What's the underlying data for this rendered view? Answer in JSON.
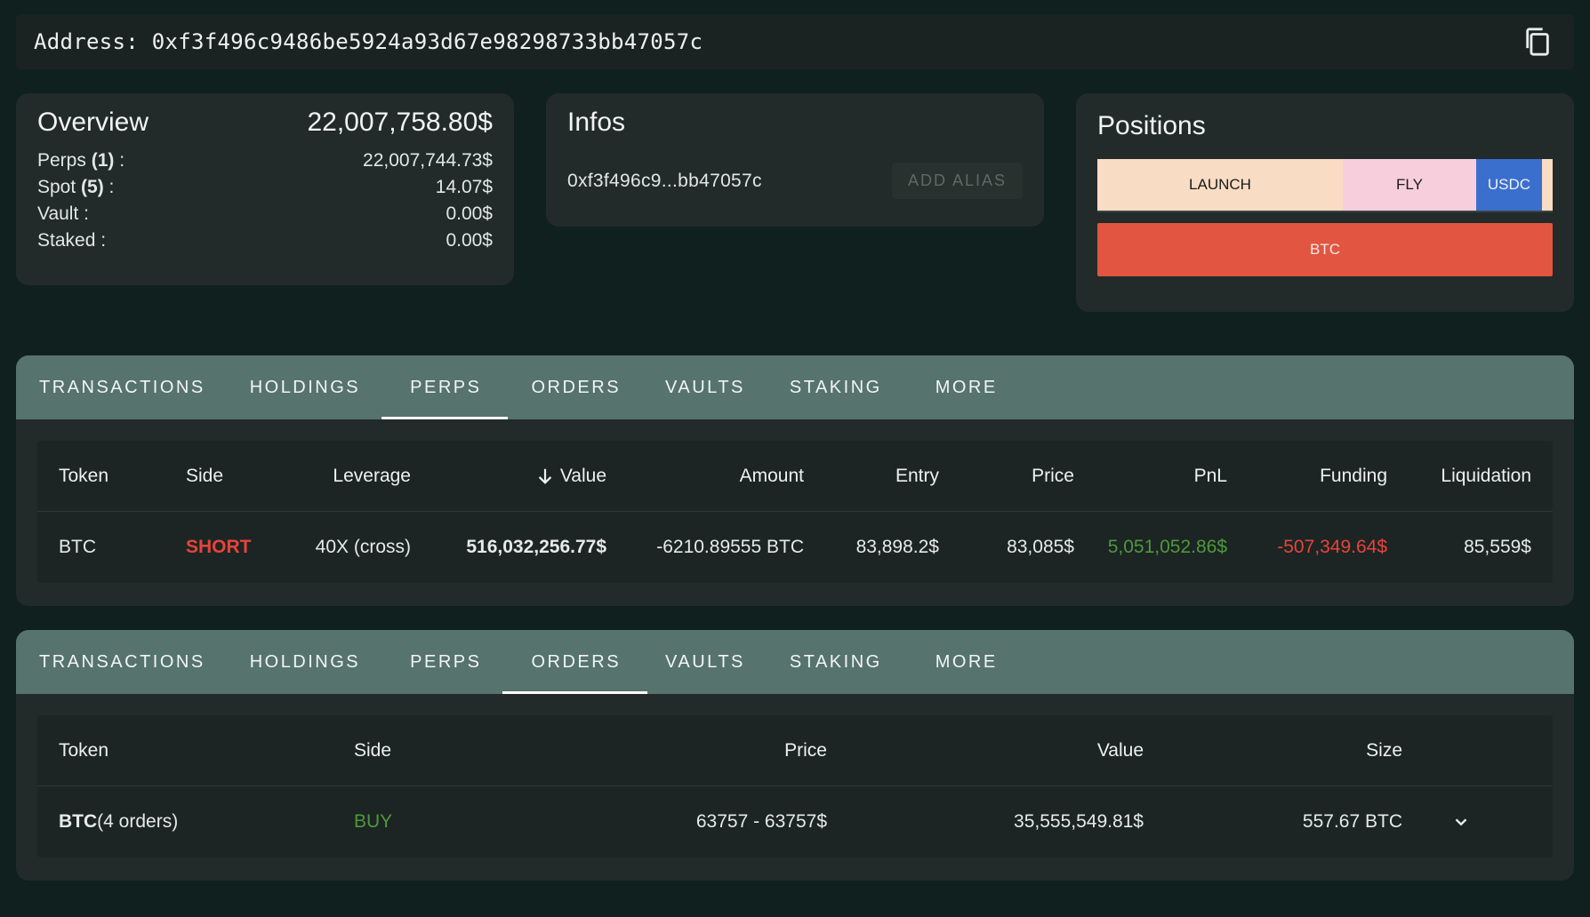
{
  "address_bar": {
    "label": "Address:",
    "value": "0xf3f496c9486be5924a93d67e98298733bb47057c"
  },
  "overview": {
    "title": "Overview",
    "total": "22,007,758.80$",
    "rows": [
      {
        "label": "Perps",
        "count": "(1)",
        "suffix": " :",
        "value": "22,007,744.73$"
      },
      {
        "label": "Spot",
        "count": "(5)",
        "suffix": " :",
        "value": "14.07$"
      },
      {
        "label": "Vault :",
        "value": "0.00$"
      },
      {
        "label": "Staked :",
        "value": "0.00$"
      }
    ]
  },
  "infos": {
    "title": "Infos",
    "short_address": "0xf3f496c9...bb47057c",
    "add_alias_label": "ADD ALIAS"
  },
  "positions": {
    "title": "Positions",
    "bar": [
      {
        "label": "LAUNCH",
        "color": "#f9dcc4"
      },
      {
        "label": "FLY",
        "color": "#f7cfdc"
      },
      {
        "label": "USDC",
        "color": "#3b6fce"
      }
    ],
    "short": {
      "label": "BTC",
      "color": "#e15541"
    }
  },
  "tabs": [
    "TRANSACTIONS",
    "HOLDINGS",
    "PERPS",
    "ORDERS",
    "VAULTS",
    "STAKING",
    "MORE"
  ],
  "perps_panel": {
    "active_tab": "PERPS",
    "columns": {
      "token": "Token",
      "side": "Side",
      "leverage": "Leverage",
      "value": "Value",
      "amount": "Amount",
      "entry": "Entry",
      "price": "Price",
      "pnl": "PnL",
      "funding": "Funding",
      "liquidation": "Liquidation"
    },
    "rows": [
      {
        "token": "BTC",
        "side": "SHORT",
        "leverage": "40X (cross)",
        "value": "516,032,256.77$",
        "amount": "-6210.89555 BTC",
        "entry": "83,898.2$",
        "price": "83,085$",
        "pnl": "5,051,052.86$",
        "funding": "-507,349.64$",
        "liquidation": "85,559$"
      }
    ]
  },
  "orders_panel": {
    "active_tab": "ORDERS",
    "columns": {
      "token": "Token",
      "side": "Side",
      "price": "Price",
      "value": "Value",
      "size": "Size"
    },
    "rows": [
      {
        "token": "BTC",
        "token_note": "(4 orders)",
        "side": "BUY",
        "price": "63757 - 63757$",
        "value": "35,555,549.81$",
        "size": "557.67 BTC"
      }
    ]
  },
  "colors": {
    "background": "#0f201f",
    "tab_bar": "#56736d",
    "short": "#e4453a",
    "buy": "#4b9a3a",
    "pnl_positive": "#4b9a3a",
    "pnl_negative": "#e4453a"
  }
}
